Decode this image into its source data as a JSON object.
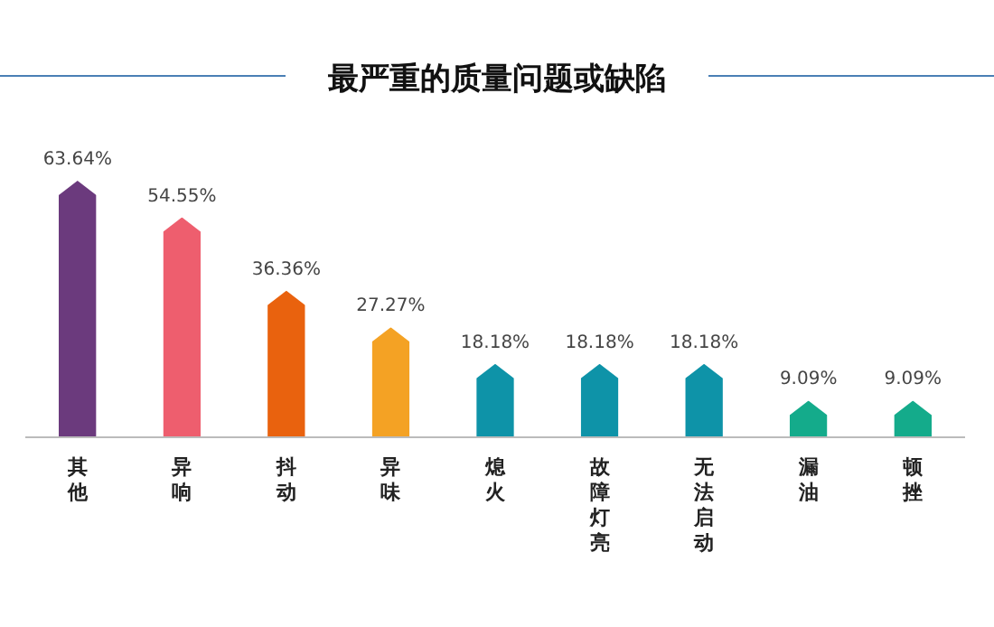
{
  "chart_data": {
    "type": "bar",
    "title": "最严重的质量问题或缺陷",
    "categories": [
      "其他",
      "异响",
      "抖动",
      "异味",
      "熄火",
      "故障灯亮",
      "无法启动",
      "漏油",
      "顿挫"
    ],
    "values": [
      63.64,
      54.55,
      36.36,
      27.27,
      18.18,
      18.18,
      18.18,
      9.09,
      9.09
    ],
    "colors": [
      "#6b3a7d",
      "#ee5e6e",
      "#e9620e",
      "#f4a224",
      "#0e93a8",
      "#0e93a8",
      "#0e93a8",
      "#14ab8b",
      "#14ab8b"
    ],
    "value_labels": [
      "63.64%",
      "54.55%",
      "36.36%",
      "27.27%",
      "18.18%",
      "18.18%",
      "18.18%",
      "9.09%",
      "9.09%"
    ]
  }
}
